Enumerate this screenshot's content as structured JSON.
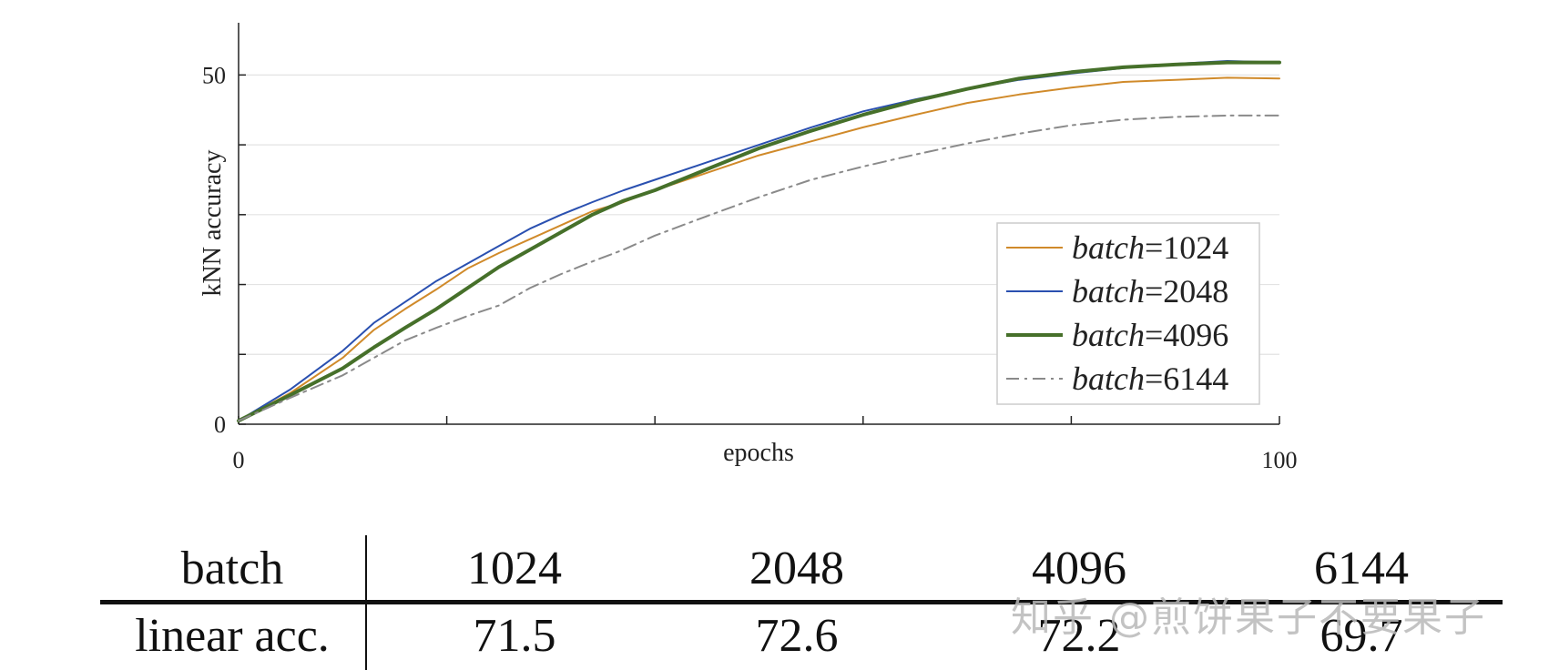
{
  "chart_data": {
    "type": "line",
    "xlabel": "epochs",
    "ylabel": "kNN accuracy",
    "xlim": [
      0,
      100
    ],
    "ylim": [
      0,
      55
    ],
    "xticks": [
      0,
      20,
      40,
      60,
      80,
      100
    ],
    "xtick_labels": [
      "0",
      "",
      "",
      "",
      "",
      "100"
    ],
    "yticks": [
      0,
      10,
      20,
      30,
      40,
      50
    ],
    "ytick_labels": [
      "0",
      "",
      "",
      "",
      "",
      "50"
    ],
    "grid": "horizontal",
    "legend_position": "right",
    "legend": {
      "prefix": "batch",
      "eq": "=",
      "values": [
        "1024",
        "2048",
        "4096",
        "6144"
      ]
    },
    "series": [
      {
        "name": "batch=1024",
        "color": "#d08a2a",
        "style": "solid",
        "width": 2,
        "points": [
          [
            0,
            0.5
          ],
          [
            5,
            4.5
          ],
          [
            10,
            9.5
          ],
          [
            13,
            13.5
          ],
          [
            16,
            16.5
          ],
          [
            19,
            19.3
          ],
          [
            22,
            22.3
          ],
          [
            25,
            24.5
          ],
          [
            28,
            26.5
          ],
          [
            31,
            28.5
          ],
          [
            34,
            30.5
          ],
          [
            37,
            31.8
          ],
          [
            40,
            33.5
          ],
          [
            45,
            36.0
          ],
          [
            50,
            38.5
          ],
          [
            55,
            40.5
          ],
          [
            60,
            42.5
          ],
          [
            65,
            44.3
          ],
          [
            70,
            46.0
          ],
          [
            75,
            47.2
          ],
          [
            80,
            48.2
          ],
          [
            85,
            49.0
          ],
          [
            90,
            49.3
          ],
          [
            95,
            49.6
          ],
          [
            100,
            49.5
          ]
        ]
      },
      {
        "name": "batch=2048",
        "color": "#2a50b0",
        "style": "solid",
        "width": 2,
        "points": [
          [
            0,
            0.5
          ],
          [
            5,
            5.0
          ],
          [
            10,
            10.5
          ],
          [
            13,
            14.5
          ],
          [
            16,
            17.5
          ],
          [
            19,
            20.5
          ],
          [
            22,
            23.0
          ],
          [
            25,
            25.5
          ],
          [
            28,
            28.0
          ],
          [
            31,
            30.0
          ],
          [
            34,
            31.8
          ],
          [
            37,
            33.5
          ],
          [
            40,
            35.0
          ],
          [
            45,
            37.5
          ],
          [
            50,
            40.0
          ],
          [
            55,
            42.5
          ],
          [
            60,
            44.8
          ],
          [
            65,
            46.5
          ],
          [
            70,
            48.0
          ],
          [
            75,
            49.3
          ],
          [
            80,
            50.2
          ],
          [
            85,
            51.0
          ],
          [
            90,
            51.6
          ],
          [
            95,
            52.0
          ],
          [
            100,
            51.8
          ]
        ]
      },
      {
        "name": "batch=4096",
        "color": "#46702a",
        "style": "solid",
        "width": 4,
        "points": [
          [
            0,
            0.5
          ],
          [
            5,
            4.2
          ],
          [
            10,
            8.0
          ],
          [
            13,
            11.0
          ],
          [
            16,
            13.8
          ],
          [
            19,
            16.5
          ],
          [
            22,
            19.5
          ],
          [
            25,
            22.5
          ],
          [
            28,
            25.0
          ],
          [
            31,
            27.5
          ],
          [
            34,
            30.0
          ],
          [
            37,
            32.0
          ],
          [
            40,
            33.5
          ],
          [
            45,
            36.5
          ],
          [
            50,
            39.5
          ],
          [
            55,
            42.0
          ],
          [
            60,
            44.3
          ],
          [
            65,
            46.3
          ],
          [
            70,
            48.0
          ],
          [
            75,
            49.5
          ],
          [
            80,
            50.4
          ],
          [
            85,
            51.1
          ],
          [
            90,
            51.5
          ],
          [
            95,
            51.8
          ],
          [
            100,
            51.8
          ]
        ]
      },
      {
        "name": "batch=6144",
        "color": "#8a8a8a",
        "style": "dashdot",
        "width": 2,
        "points": [
          [
            0,
            0.5
          ],
          [
            5,
            3.8
          ],
          [
            10,
            7.0
          ],
          [
            13,
            9.5
          ],
          [
            16,
            12.0
          ],
          [
            19,
            13.8
          ],
          [
            22,
            15.5
          ],
          [
            25,
            17.0
          ],
          [
            28,
            19.5
          ],
          [
            31,
            21.5
          ],
          [
            34,
            23.3
          ],
          [
            37,
            25.0
          ],
          [
            40,
            27.0
          ],
          [
            45,
            29.8
          ],
          [
            50,
            32.5
          ],
          [
            55,
            35.0
          ],
          [
            60,
            36.9
          ],
          [
            65,
            38.6
          ],
          [
            70,
            40.2
          ],
          [
            75,
            41.6
          ],
          [
            80,
            42.8
          ],
          [
            85,
            43.6
          ],
          [
            90,
            44.0
          ],
          [
            95,
            44.2
          ],
          [
            100,
            44.2
          ]
        ]
      }
    ]
  },
  "table": {
    "header": {
      "label": "batch",
      "values": [
        "1024",
        "2048",
        "4096",
        "6144"
      ]
    },
    "row": {
      "label": "linear acc.",
      "values": [
        "71.5",
        "72.6",
        "72.2",
        "69.7"
      ]
    }
  },
  "watermark": "知乎 @煎饼果子不要果子"
}
